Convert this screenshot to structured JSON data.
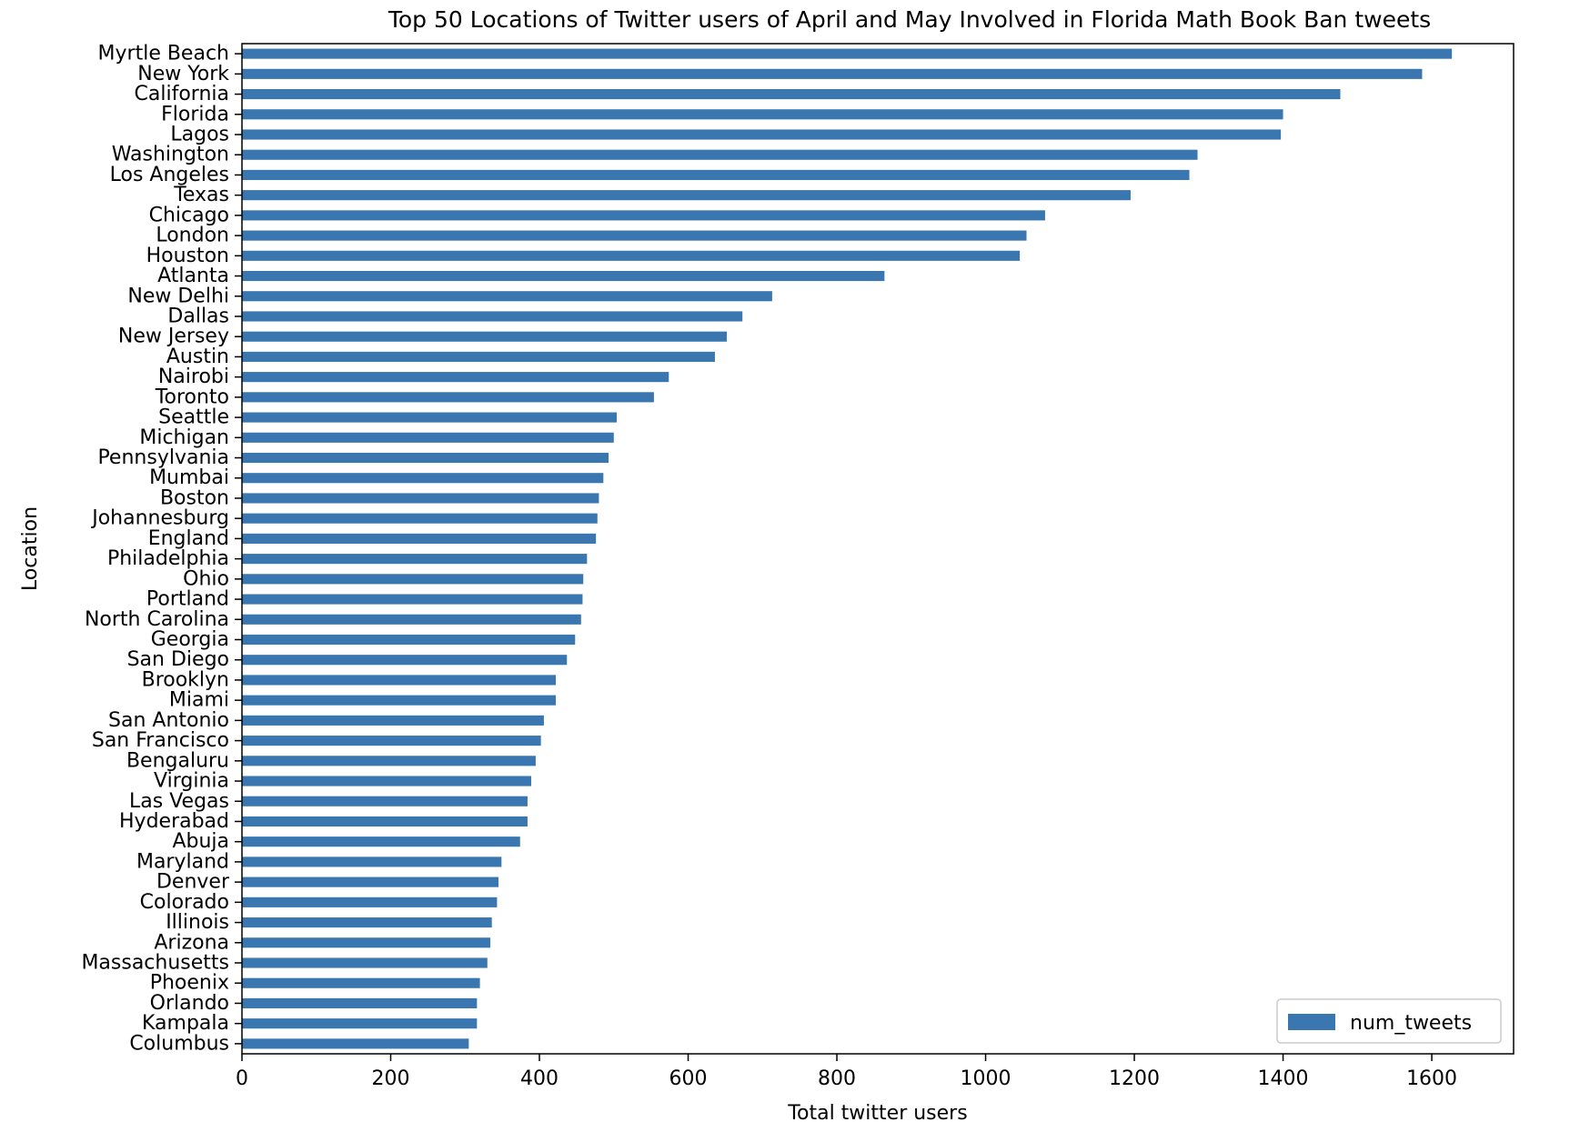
{
  "chart_data": {
    "type": "bar",
    "orientation": "horizontal",
    "title": "Top 50 Locations of Twitter users of April and May Involved in Florida Math Book Ban tweets",
    "xlabel": "Total twitter users",
    "ylabel": "Location",
    "xlim": [
      0,
      1710
    ],
    "xticks": [
      0,
      200,
      400,
      600,
      800,
      1000,
      1200,
      1400,
      1600
    ],
    "grid": false,
    "legend_position": "lower-right",
    "bar_color": "#3a76b0",
    "series": [
      {
        "name": "num_tweets",
        "categories": [
          "Myrtle Beach",
          "New York",
          "California",
          "Florida",
          "Lagos",
          "Washington",
          "Los Angeles",
          "Texas",
          "Chicago",
          "London",
          "Houston",
          "Atlanta",
          "New Delhi",
          "Dallas",
          "New Jersey",
          "Austin",
          "Nairobi",
          "Toronto",
          "Seattle",
          "Michigan",
          "Pennsylvania",
          "Mumbai",
          "Boston",
          "Johannesburg",
          "England",
          "Philadelphia",
          "Ohio",
          "Portland",
          "North Carolina",
          "Georgia",
          "San Diego",
          "Brooklyn",
          "Miami",
          "San Antonio",
          "San Francisco",
          "Bengaluru",
          "Virginia",
          "Las Vegas",
          "Hyderabad",
          "Abuja",
          "Maryland",
          "Denver",
          "Colorado",
          "Illinois",
          "Arizona",
          "Massachusetts",
          "Phoenix",
          "Orlando",
          "Kampala",
          "Columbus"
        ],
        "values": [
          1627,
          1587,
          1477,
          1400,
          1397,
          1285,
          1274,
          1195,
          1080,
          1055,
          1046,
          864,
          713,
          673,
          652,
          636,
          574,
          554,
          504,
          500,
          493,
          486,
          480,
          478,
          476,
          464,
          459,
          458,
          456,
          448,
          437,
          422,
          422,
          406,
          402,
          395,
          389,
          384,
          384,
          374,
          349,
          345,
          343,
          336,
          334,
          330,
          320,
          316,
          316,
          305
        ]
      }
    ]
  }
}
